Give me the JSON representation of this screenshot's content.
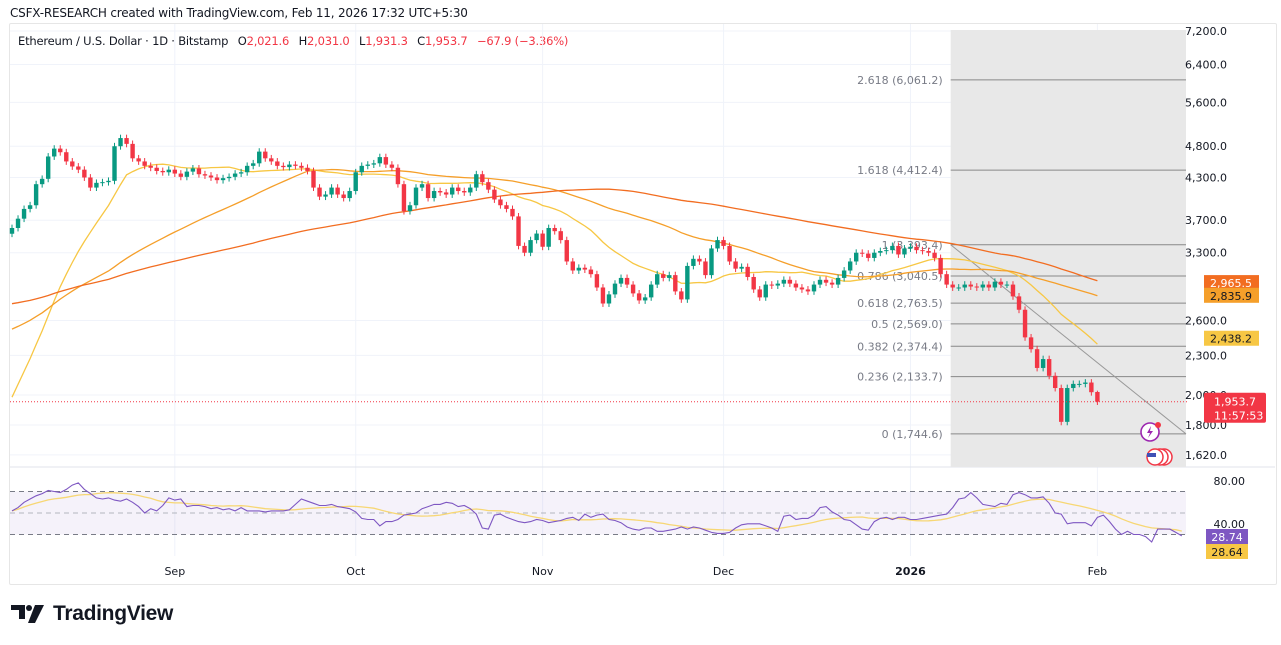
{
  "header": {
    "credit": "CSFX-RESEARCH created with TradingView.com, Feb 11, 2026 17:32 UTC+5:30"
  },
  "legend": {
    "symbol": "Ethereum / U.S. Dollar · 1D · Bitstamp",
    "o_label": "O",
    "o_value": "2,021.6",
    "h_label": "H",
    "h_value": "2,031.0",
    "l_label": "L",
    "l_value": "1,931.3",
    "c_label": "C",
    "c_value": "1,953.7",
    "change": "−67.9 (−3.36%)"
  },
  "logo": {
    "text": "TradingView"
  },
  "colors": {
    "up": "#089981",
    "down": "#f23645",
    "ma_fast": "#f7c744",
    "ma_mid": "#f59f2a",
    "ma_slow": "#f26d21",
    "rsi": "#7e57c2",
    "rsi_ma": "#f7d774",
    "fib_zone": "#e8e8e8",
    "fib_line": "#888888"
  },
  "price_scale": {
    "ticks": [
      "7,200.0",
      "6,400.0",
      "5,600.0",
      "4,800.0",
      "4,300.0",
      "3,700.0",
      "3,300.0",
      "2,600.0",
      "2,300.0",
      "2,000.0",
      "1,800.0",
      "1,620.0"
    ],
    "tick_values": [
      7200,
      6400,
      5600,
      4800,
      4300,
      3700,
      3300,
      2600,
      2300,
      2000,
      1800,
      1620
    ],
    "badges": [
      {
        "name": "ma-slow-badge",
        "text": "2,965.5",
        "value": 2965.5,
        "bg": "#f26d21",
        "fg": "#ffffff"
      },
      {
        "name": "ma-mid-badge",
        "text": "2,835.9",
        "value": 2835.9,
        "bg": "#f59f2a",
        "fg": "#131722"
      },
      {
        "name": "ma-fast-badge",
        "text": "2,438.2",
        "value": 2438.2,
        "bg": "#f7c744",
        "fg": "#131722"
      }
    ],
    "last_price": {
      "text": "1,953.7",
      "countdown": "11:57:53",
      "value": 1953.7,
      "bg": "#f23645"
    }
  },
  "rsi_scale": {
    "ticks": [
      "80.00",
      "40.00"
    ],
    "tick_values": [
      80,
      40
    ],
    "badges": [
      {
        "name": "rsi-badge",
        "text": "28.74",
        "value": 28.74,
        "bg": "#7e57c2",
        "fg": "#ffffff"
      },
      {
        "name": "rsi-ma-badge",
        "text": "28.64",
        "value": 28.64,
        "bg": "#f7c744",
        "fg": "#131722"
      }
    ]
  },
  "chart_data": {
    "type": "candlestick",
    "title": "Ethereum / U.S. Dollar · 1D · Bitstamp",
    "x_tick_labels": [
      "Sep",
      "Oct",
      "Nov",
      "Dec",
      "2026",
      "Feb"
    ],
    "x_tick_day_index": [
      27,
      57,
      88,
      118,
      149,
      180
    ],
    "y_scale": "log",
    "ylim": [
      1560,
      7400
    ],
    "start_date": "2025-08-05",
    "closes": [
      3600,
      3720,
      3850,
      3900,
      4200,
      4280,
      4630,
      4760,
      4700,
      4550,
      4470,
      4420,
      4300,
      4150,
      4220,
      4230,
      4250,
      4800,
      4940,
      4840,
      4600,
      4550,
      4480,
      4450,
      4400,
      4380,
      4420,
      4360,
      4310,
      4390,
      4440,
      4350,
      4330,
      4300,
      4260,
      4290,
      4310,
      4360,
      4380,
      4480,
      4520,
      4710,
      4600,
      4550,
      4480,
      4460,
      4500,
      4480,
      4450,
      4400,
      4150,
      4020,
      4050,
      4150,
      4050,
      4000,
      4100,
      4380,
      4480,
      4500,
      4520,
      4620,
      4500,
      4450,
      4200,
      3820,
      3900,
      4150,
      4200,
      4000,
      4100,
      4080,
      4050,
      4150,
      4100,
      4080,
      4150,
      4350,
      4230,
      4120,
      3980,
      3900,
      3850,
      3750,
      3380,
      3300,
      3450,
      3530,
      3370,
      3600,
      3560,
      3450,
      3200,
      3100,
      3130,
      3110,
      3060,
      2920,
      2760,
      2850,
      2960,
      3020,
      2950,
      2860,
      2790,
      2820,
      2950,
      3060,
      3020,
      3050,
      2880,
      2800,
      3150,
      3230,
      3200,
      3050,
      3350,
      3450,
      3380,
      3200,
      3120,
      3140,
      3030,
      2900,
      2820,
      2950,
      2940,
      2960,
      3000,
      2960,
      2920,
      2900,
      2880,
      2950,
      3000,
      2970,
      2950,
      3020,
      3100,
      3200,
      3300,
      3290,
      3240,
      3300,
      3320,
      3330,
      3380,
      3280,
      3350,
      3370,
      3330,
      3320,
      3300,
      3240,
      3060,
      2950,
      2920,
      2920,
      2950,
      2930,
      2920,
      2950,
      2920,
      2980,
      2950,
      2950,
      2830,
      2700,
      2450,
      2350,
      2200,
      2270,
      2140,
      2050,
      1820,
      2050,
      2080,
      2080,
      2090,
      2020,
      1953.7
    ],
    "last_candle": {
      "open": 2021.6,
      "high": 2031.0,
      "low": 1931.3,
      "close": 1953.7
    },
    "moving_averages": [
      {
        "name": "MA fast",
        "color": "#f7c744",
        "last": 2438.2
      },
      {
        "name": "MA mid",
        "color": "#f59f2a",
        "last": 2835.9
      },
      {
        "name": "MA slow",
        "color": "#f26d21",
        "last": 2965.5
      }
    ],
    "fibonacci": {
      "levels": [
        {
          "ratio": "2.618",
          "price": 6061.2,
          "label": "2.618 (6,061.2)"
        },
        {
          "ratio": "1.618",
          "price": 4412.4,
          "label": "1.618 (4,412.4)"
        },
        {
          "ratio": "1",
          "price": 3393.4,
          "label": "1 (3,393.4)"
        },
        {
          "ratio": "0.786",
          "price": 3040.5,
          "label": "0.786 (3,040.5)"
        },
        {
          "ratio": "0.618",
          "price": 2763.5,
          "label": "0.618 (2,763.5)"
        },
        {
          "ratio": "0.5",
          "price": 2569.0,
          "label": "0.5 (2,569.0)"
        },
        {
          "ratio": "0.382",
          "price": 2374.4,
          "label": "0.382 (2,374.4)"
        },
        {
          "ratio": "0.236",
          "price": 2133.7,
          "label": "0.236 (2,133.7)"
        },
        {
          "ratio": "0",
          "price": 1744.6,
          "label": "0 (1,744.6)"
        }
      ],
      "start_day_index": 156,
      "end_day_index": 196
    },
    "rsi": {
      "ylim": [
        10,
        90
      ],
      "upper": 70,
      "middle": 50,
      "lower": 30,
      "values": [
        52,
        55,
        60,
        63,
        66,
        68,
        71,
        70,
        69,
        72,
        76,
        78,
        72,
        68,
        64,
        63,
        64,
        62,
        61,
        63,
        60,
        56,
        50,
        54,
        52,
        57,
        64,
        62,
        63,
        56,
        57,
        57,
        56,
        54,
        55,
        53,
        54,
        52,
        55,
        52,
        52,
        52,
        51,
        52,
        52,
        52,
        53,
        58,
        63,
        61,
        59,
        57,
        57,
        58,
        56,
        55,
        54,
        51,
        45,
        44,
        44,
        38,
        42,
        42,
        44,
        48,
        49,
        50,
        54,
        56,
        58,
        58,
        60,
        59,
        56,
        57,
        54,
        49,
        36,
        35,
        48,
        49,
        46,
        44,
        42,
        41,
        42,
        44,
        43,
        41,
        42,
        43,
        45,
        46,
        43,
        49,
        46,
        48,
        49,
        44,
        43,
        41,
        37,
        35,
        34,
        36,
        36,
        33,
        33,
        34,
        35,
        37,
        35,
        37,
        36,
        34,
        32,
        31,
        31,
        32,
        36,
        39,
        40,
        40,
        40,
        38,
        36,
        33,
        47,
        48,
        44,
        45,
        45,
        48,
        55,
        56,
        51,
        48,
        44,
        43,
        39,
        35,
        34,
        42,
        45,
        46,
        44,
        46,
        46,
        44,
        44,
        45,
        46,
        47,
        48,
        49,
        55,
        63,
        64,
        69,
        64,
        58,
        57,
        56,
        59,
        58,
        67,
        69,
        67,
        64,
        64,
        65,
        59,
        50,
        49,
        40,
        41,
        41,
        41,
        38,
        46,
        48,
        42,
        35,
        30,
        33,
        30,
        30,
        28,
        23,
        35,
        35,
        35,
        32,
        28.74
      ],
      "ma_last": 28.64
    }
  }
}
